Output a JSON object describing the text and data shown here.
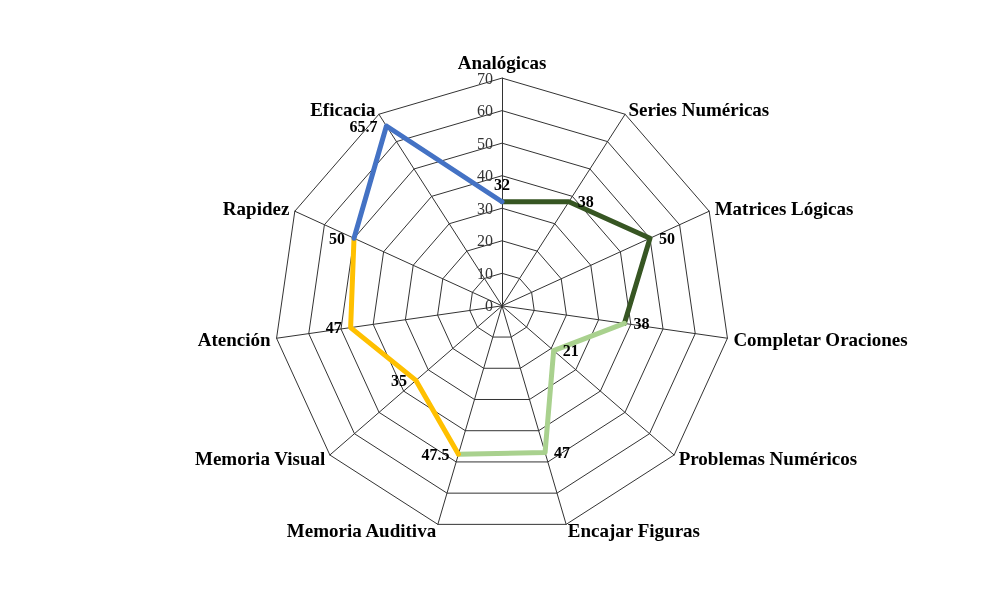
{
  "chart_data": {
    "type": "radar",
    "categories": [
      "Analógicas",
      "Series Numéricas",
      "Matrices Lógicas",
      "Completar Oraciones",
      "Problemas Numéricos",
      "Encajar Figuras",
      "Memoria Auditiva",
      "Memoria Visual",
      "Atención",
      "Rapidez",
      "Eficacia"
    ],
    "series": [
      {
        "color": "#375623",
        "values": [
          32,
          38,
          50,
          38,
          null,
          null,
          null,
          null,
          null,
          null,
          null
        ],
        "value_labels": [
          "32",
          "38",
          "50",
          "38",
          null,
          null,
          null,
          null,
          null,
          null,
          null
        ]
      },
      {
        "color": "#a9d18e",
        "values": [
          null,
          null,
          null,
          38,
          21,
          47,
          47.5,
          null,
          null,
          null,
          null
        ],
        "value_labels": [
          null,
          null,
          null,
          null,
          "21",
          "47",
          "47.5",
          null,
          null,
          null,
          null
        ]
      },
      {
        "color": "#ffc000",
        "values": [
          null,
          null,
          null,
          null,
          null,
          null,
          47.5,
          35,
          47,
          50,
          null
        ],
        "value_labels": [
          null,
          null,
          null,
          null,
          null,
          null,
          null,
          "35",
          "47",
          "50",
          null
        ]
      },
      {
        "color": "#4472c4",
        "values": [
          32,
          null,
          null,
          null,
          null,
          null,
          null,
          null,
          null,
          50,
          65.7
        ],
        "value_labels": [
          null,
          null,
          null,
          null,
          null,
          null,
          null,
          null,
          null,
          null,
          "65.7"
        ]
      }
    ],
    "ylim": [
      0,
      70
    ],
    "yticks": [
      0,
      10,
      20,
      30,
      40,
      50,
      60,
      70
    ],
    "marker": "none",
    "line_style": "solid",
    "grid": true
  }
}
